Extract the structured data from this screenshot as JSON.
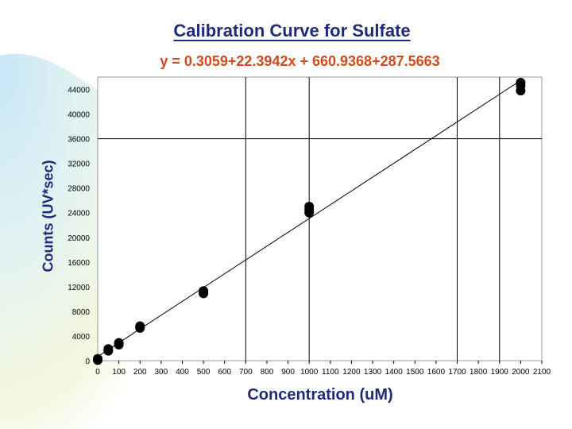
{
  "chart_data": {
    "type": "scatter",
    "title": "Calibration Curve for Sulfate",
    "subtitle": "y = 0.3059+22.3942x + 660.9368+287.5663",
    "xlabel": "Concentration (uM)",
    "ylabel": "Counts (UV*sec)",
    "xlim": [
      0,
      2100
    ],
    "ylim": [
      0,
      46000
    ],
    "x_ticks": [
      0,
      100,
      200,
      300,
      400,
      500,
      600,
      700,
      800,
      900,
      1000,
      1100,
      1200,
      1300,
      1400,
      1500,
      1600,
      1700,
      1800,
      1900,
      2000,
      2100
    ],
    "y_ticks": [
      0,
      4000,
      8000,
      12000,
      16000,
      20000,
      24000,
      28000,
      32000,
      36000,
      40000,
      44000
    ],
    "grid": {
      "vertical_lines_at": [
        700,
        1000,
        1700,
        1900
      ],
      "horizontal_lines_at": [
        36000
      ]
    },
    "legend": "none",
    "series": [
      {
        "points": [
          [
            0,
            100
          ],
          [
            0,
            300
          ],
          [
            50,
            1600
          ],
          [
            50,
            1900
          ],
          [
            100,
            2600
          ],
          [
            100,
            2900
          ],
          [
            200,
            5300
          ],
          [
            200,
            5600
          ],
          [
            500,
            10900
          ],
          [
            500,
            11300
          ],
          [
            1000,
            24000
          ],
          [
            1000,
            24500
          ],
          [
            1000,
            25000
          ],
          [
            2000,
            43800
          ],
          [
            2000,
            44600
          ],
          [
            2000,
            45100
          ]
        ]
      }
    ],
    "trendline": {
      "x": [
        0,
        2000
      ],
      "y": [
        661,
        45449
      ]
    },
    "colors": {
      "title": "#1f2a7a",
      "equation": "#d24a1a",
      "marker": "#000000",
      "grid": "#000000"
    }
  }
}
